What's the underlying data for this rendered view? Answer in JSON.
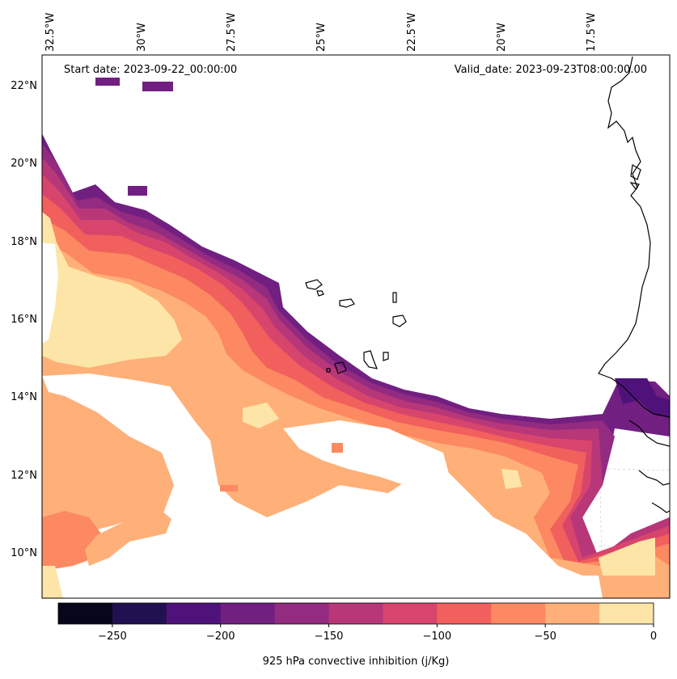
{
  "map": {
    "start_date": "Start date: 2023-09-22_00:00:00",
    "valid_date": "Valid_date: 2023-09-23T08:00:00.00",
    "lon_labels": [
      "32.5°W",
      "30°W",
      "27.5°W",
      "25°W",
      "22.5°W",
      "20°W",
      "17.5°W"
    ],
    "lat_labels": [
      "22°N",
      "20°N",
      "18°N",
      "16°N",
      "14°N",
      "12°N",
      "10°N"
    ]
  },
  "colorbar": {
    "title": "925 hPa convective inhibition (j/Kg)",
    "tick_labels": [
      "−250",
      "−200",
      "−150",
      "−100",
      "−50",
      "0"
    ],
    "colors": [
      "#07061c",
      "#221150",
      "#4f127b",
      "#711f81",
      "#932b80",
      "#b73779",
      "#d8456c",
      "#f1605d",
      "#fc8961",
      "#feb078",
      "#fde5a7"
    ],
    "levels": [
      -275,
      -250,
      -225,
      -200,
      -175,
      -150,
      -125,
      -100,
      -75,
      -50,
      -25,
      0
    ]
  }
}
